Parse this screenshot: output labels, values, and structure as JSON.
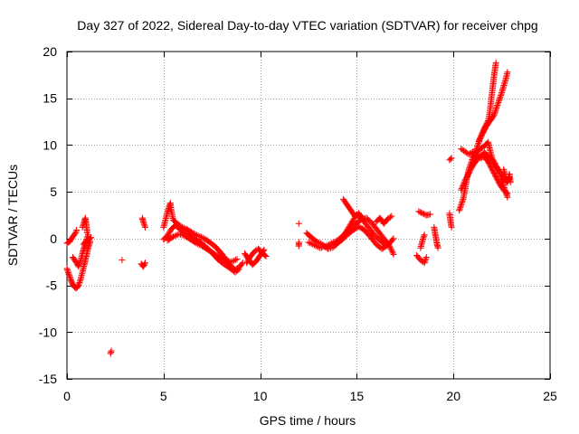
{
  "chart_data": {
    "type": "scatter",
    "title": "Day 327 of 2022, Sidereal Day-to-day VTEC variation (SDTVAR) for receiver chpg",
    "xlabel": "GPS time / hours",
    "ylabel": "SDTVAR / TECUs",
    "xlim": [
      0,
      25
    ],
    "ylim": [
      -15,
      20
    ],
    "xticks": [
      0,
      5,
      10,
      15,
      20,
      25
    ],
    "yticks": [
      -15,
      -10,
      -5,
      0,
      5,
      10,
      15,
      20
    ],
    "xtick_labels": [
      "0",
      "5",
      "10",
      "15",
      "20",
      "25"
    ],
    "ytick_labels": [
      "-15",
      "-10",
      "-5",
      "0",
      "5",
      "10",
      "15",
      "20"
    ],
    "grid": true,
    "marker": "+",
    "color": "#ff0000",
    "series": [
      {
        "name": "SDTVAR",
        "segments": [
          [
            [
              0.0,
              -0.5
            ],
            [
              0.15,
              -0.3
            ],
            [
              0.3,
              0.2
            ],
            [
              0.45,
              0.6
            ],
            [
              0.5,
              0.9
            ]
          ],
          [
            [
              0.0,
              -3.2
            ],
            [
              0.1,
              -3.8
            ],
            [
              0.2,
              -4.4
            ],
            [
              0.3,
              -4.9
            ],
            [
              0.4,
              -5.2
            ],
            [
              0.5,
              -5.3
            ],
            [
              0.6,
              -5.0
            ],
            [
              0.7,
              -4.4
            ],
            [
              0.8,
              -3.6
            ],
            [
              0.9,
              -2.8
            ],
            [
              1.0,
              -1.9
            ],
            [
              1.1,
              -1.0
            ],
            [
              1.2,
              -0.3
            ]
          ],
          [
            [
              0.3,
              -2.0
            ],
            [
              0.5,
              -2.6
            ],
            [
              0.6,
              -3.0
            ],
            [
              0.7,
              -2.4
            ],
            [
              0.8,
              -1.6
            ],
            [
              0.9,
              -0.9
            ],
            [
              1.0,
              -0.2
            ],
            [
              1.1,
              0.4
            ]
          ],
          [
            [
              0.8,
              1.2
            ],
            [
              0.9,
              1.8
            ],
            [
              0.95,
              2.2
            ],
            [
              1.0,
              1.5
            ],
            [
              1.05,
              0.6
            ]
          ],
          [
            [
              0.85,
              -0.6
            ],
            [
              1.0,
              -0.3
            ],
            [
              1.15,
              -0.1
            ],
            [
              1.25,
              0.1
            ]
          ],
          [
            [
              2.25,
              -12.3
            ],
            [
              2.3,
              -12.0
            ]
          ],
          [
            [
              2.85,
              -2.3
            ]
          ],
          [
            [
              3.9,
              2.2
            ],
            [
              3.95,
              1.8
            ],
            [
              4.0,
              1.5
            ],
            [
              4.05,
              1.2
            ]
          ],
          [
            [
              3.85,
              -2.7
            ],
            [
              3.95,
              -3.0
            ],
            [
              4.05,
              -2.6
            ]
          ],
          [
            [
              5.0,
              1.2
            ],
            [
              5.1,
              2.0
            ],
            [
              5.2,
              2.8
            ],
            [
              5.3,
              3.5
            ],
            [
              5.35,
              3.8
            ],
            [
              5.4,
              3.0
            ],
            [
              5.5,
              2.0
            ],
            [
              5.7,
              1.6
            ],
            [
              5.9,
              1.3
            ],
            [
              6.2,
              1.0
            ],
            [
              6.5,
              0.6
            ],
            [
              6.8,
              0.3
            ],
            [
              7.1,
              0.0
            ],
            [
              7.4,
              -0.4
            ],
            [
              7.7,
              -0.9
            ],
            [
              8.0,
              -1.6
            ],
            [
              8.3,
              -2.4
            ],
            [
              8.5,
              -3.0
            ],
            [
              8.7,
              -3.3
            ],
            [
              8.9,
              -3.1
            ],
            [
              9.1,
              -2.6
            ]
          ],
          [
            [
              5.0,
              -0.1
            ],
            [
              5.2,
              0.3
            ],
            [
              5.4,
              1.0
            ],
            [
              5.6,
              1.4
            ],
            [
              5.8,
              1.1
            ],
            [
              6.0,
              0.7
            ],
            [
              6.3,
              0.4
            ],
            [
              6.6,
              0.0
            ],
            [
              6.9,
              -0.4
            ],
            [
              7.2,
              -0.9
            ],
            [
              7.5,
              -1.5
            ],
            [
              7.8,
              -2.2
            ],
            [
              8.1,
              -2.7
            ],
            [
              8.4,
              -3.1
            ],
            [
              8.7,
              -3.6
            ],
            [
              8.9,
              -3.3
            ]
          ],
          [
            [
              5.2,
              -0.2
            ],
            [
              5.5,
              0.2
            ],
            [
              5.8,
              0.5
            ],
            [
              6.1,
              0.3
            ],
            [
              6.4,
              -0.1
            ],
            [
              6.7,
              -0.5
            ],
            [
              7.0,
              -0.8
            ],
            [
              7.3,
              -1.2
            ],
            [
              7.6,
              -1.6
            ],
            [
              7.9,
              -2.0
            ],
            [
              8.2,
              -2.3
            ],
            [
              8.5,
              -2.5
            ],
            [
              8.8,
              -2.2
            ]
          ],
          [
            [
              9.2,
              -1.6
            ],
            [
              9.4,
              -2.2
            ],
            [
              9.6,
              -2.8
            ],
            [
              9.8,
              -2.4
            ],
            [
              10.0,
              -1.8
            ],
            [
              10.2,
              -1.2
            ]
          ],
          [
            [
              9.3,
              -2.6
            ],
            [
              9.5,
              -1.9
            ],
            [
              9.7,
              -1.4
            ],
            [
              9.9,
              -1.1
            ],
            [
              10.1,
              -1.5
            ],
            [
              10.3,
              -1.9
            ]
          ],
          [
            [
              12.0,
              1.6
            ]
          ],
          [
            [
              12.0,
              -0.4
            ],
            [
              12.0,
              -0.8
            ]
          ],
          [
            [
              12.5,
              -0.4
            ],
            [
              12.8,
              -0.7
            ],
            [
              13.1,
              -1.0
            ],
            [
              13.4,
              -0.8
            ],
            [
              13.7,
              -0.5
            ],
            [
              14.0,
              -0.2
            ],
            [
              14.3,
              0.3
            ],
            [
              14.6,
              0.9
            ],
            [
              14.9,
              1.5
            ],
            [
              15.2,
              2.0
            ],
            [
              15.5,
              2.2
            ],
            [
              15.8,
              1.6
            ],
            [
              16.1,
              0.8
            ],
            [
              16.4,
              0.0
            ],
            [
              16.7,
              -0.8
            ],
            [
              16.9,
              -1.7
            ]
          ],
          [
            [
              12.4,
              0.6
            ],
            [
              12.6,
              0.2
            ],
            [
              12.9,
              -0.3
            ],
            [
              13.2,
              -0.6
            ],
            [
              13.5,
              -1.1
            ],
            [
              13.8,
              -0.9
            ],
            [
              14.1,
              -0.3
            ],
            [
              14.4,
              0.6
            ],
            [
              14.7,
              1.6
            ],
            [
              15.0,
              2.6
            ],
            [
              15.3,
              2.0
            ],
            [
              15.6,
              1.2
            ],
            [
              15.9,
              0.4
            ],
            [
              16.2,
              -0.2
            ],
            [
              16.5,
              -0.7
            ]
          ],
          [
            [
              13.9,
              -0.6
            ],
            [
              14.2,
              -0.2
            ],
            [
              14.5,
              0.4
            ],
            [
              14.8,
              0.9
            ],
            [
              15.1,
              1.3
            ],
            [
              15.4,
              0.9
            ],
            [
              15.7,
              0.2
            ],
            [
              16.0,
              -0.6
            ],
            [
              16.3,
              -1.1
            ],
            [
              16.6,
              -0.7
            ],
            [
              16.9,
              0.0
            ]
          ],
          [
            [
              14.3,
              4.2
            ],
            [
              14.5,
              3.6
            ],
            [
              14.7,
              3.0
            ],
            [
              14.9,
              2.4
            ],
            [
              15.1,
              2.7
            ],
            [
              15.3,
              2.2
            ]
          ],
          [
            [
              16.0,
              1.8
            ],
            [
              16.2,
              2.2
            ],
            [
              16.4,
              1.6
            ],
            [
              16.6,
              2.1
            ],
            [
              16.8,
              2.4
            ]
          ],
          [
            [
              18.2,
              2.9
            ],
            [
              18.4,
              2.7
            ],
            [
              18.6,
              2.5
            ],
            [
              18.8,
              2.6
            ]
          ],
          [
            [
              18.1,
              -1.8
            ],
            [
              18.3,
              -2.3
            ],
            [
              18.5,
              -2.6
            ],
            [
              18.6,
              -2.0
            ]
          ],
          [
            [
              18.3,
              -1.0
            ],
            [
              18.4,
              -0.2
            ],
            [
              18.5,
              0.4
            ]
          ],
          [
            [
              19.0,
              1.2
            ],
            [
              19.05,
              0.6
            ],
            [
              19.1,
              0.0
            ],
            [
              19.15,
              -0.6
            ],
            [
              19.2,
              -1.0
            ]
          ],
          [
            [
              19.8,
              2.7
            ],
            [
              19.85,
              1.8
            ],
            [
              19.9,
              1.2
            ]
          ],
          [
            [
              19.8,
              8.4
            ],
            [
              19.9,
              8.6
            ]
          ],
          [
            [
              20.3,
              3.0
            ],
            [
              20.4,
              3.6
            ],
            [
              20.5,
              4.2
            ],
            [
              20.6,
              5.2
            ],
            [
              20.7,
              6.5
            ],
            [
              20.8,
              7.4
            ],
            [
              20.9,
              8.0
            ],
            [
              21.0,
              8.6
            ],
            [
              21.2,
              9.2
            ],
            [
              21.4,
              9.6
            ],
            [
              21.6,
              9.9
            ],
            [
              21.8,
              10.3
            ],
            [
              21.9,
              9.4
            ],
            [
              22.0,
              8.6
            ],
            [
              22.2,
              7.8
            ],
            [
              22.4,
              7.0
            ],
            [
              22.5,
              6.3
            ],
            [
              22.6,
              5.6
            ],
            [
              22.7,
              5.0
            ],
            [
              22.8,
              4.4
            ]
          ],
          [
            [
              20.4,
              5.2
            ],
            [
              20.6,
              6.2
            ],
            [
              20.8,
              7.0
            ],
            [
              21.0,
              7.8
            ],
            [
              21.2,
              8.4
            ],
            [
              21.4,
              8.8
            ],
            [
              21.6,
              9.2
            ],
            [
              21.8,
              8.8
            ],
            [
              22.0,
              8.3
            ],
            [
              22.2,
              7.7
            ],
            [
              22.4,
              7.1
            ],
            [
              22.6,
              6.5
            ],
            [
              22.8,
              6.0
            ],
            [
              22.9,
              6.5
            ]
          ],
          [
            [
              20.4,
              9.6
            ],
            [
              20.6,
              9.3
            ],
            [
              20.8,
              9.0
            ],
            [
              21.0,
              9.3
            ],
            [
              21.2,
              9.0
            ],
            [
              21.4,
              8.6
            ],
            [
              21.6,
              8.8
            ],
            [
              21.8,
              8.2
            ],
            [
              22.0,
              7.4
            ],
            [
              22.2,
              6.6
            ],
            [
              22.4,
              5.8
            ],
            [
              22.6,
              5.2
            ],
            [
              22.8,
              4.8
            ]
          ],
          [
            [
              21.0,
              8.6
            ],
            [
              21.2,
              9.6
            ],
            [
              21.4,
              10.8
            ],
            [
              21.6,
              11.8
            ],
            [
              21.8,
              12.6
            ],
            [
              21.9,
              13.8
            ],
            [
              22.0,
              15.6
            ],
            [
              22.1,
              17.4
            ],
            [
              22.2,
              18.8
            ]
          ],
          [
            [
              21.3,
              10.4
            ],
            [
              21.5,
              11.2
            ],
            [
              21.7,
              12.0
            ],
            [
              21.9,
              12.6
            ],
            [
              22.1,
              13.2
            ],
            [
              22.3,
              14.4
            ],
            [
              22.5,
              15.6
            ],
            [
              22.7,
              17.0
            ],
            [
              22.8,
              17.8
            ]
          ],
          [
            [
              22.6,
              7.4
            ],
            [
              22.7,
              6.6
            ],
            [
              22.8,
              6.0
            ],
            [
              22.9,
              6.9
            ],
            [
              22.95,
              6.0
            ]
          ]
        ]
      }
    ]
  }
}
